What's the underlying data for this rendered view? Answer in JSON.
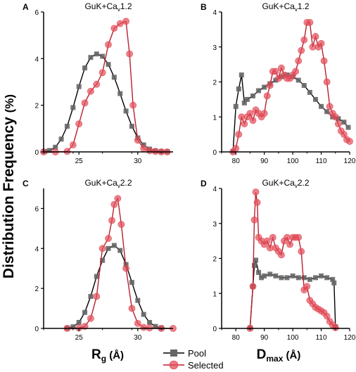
{
  "figure": {
    "ylabel_prefix": "Distribution Frequency ",
    "ylabel_unit": "(%)",
    "legend": [
      {
        "label": "Pool",
        "marker": "square",
        "color": "#333333"
      },
      {
        "label": "Selected",
        "marker": "circle",
        "color": "#e24b58"
      }
    ],
    "x_title_left": {
      "main": "R",
      "sub": "g",
      "unit": " (Å)"
    },
    "x_title_right": {
      "main": "D",
      "sub": "max",
      "unit": " (Å)"
    }
  },
  "colors": {
    "pool": "#333333",
    "selected": "#e24b58",
    "selected_line": "#b8202c",
    "axis": "#000000"
  },
  "chart_data": [
    {
      "panel": "A",
      "title": {
        "pre": "GuK+Ca",
        "sub": "v",
        "post": "1.2"
      },
      "type": "line",
      "xlim": [
        22,
        33
      ],
      "ylim": [
        0,
        6
      ],
      "xticks": [
        25,
        30
      ],
      "yticks": [
        0,
        2,
        4,
        6
      ],
      "series": [
        {
          "name": "Pool",
          "x": [
            22.1,
            22.5,
            23,
            23.5,
            24,
            24.5,
            25,
            25.5,
            26,
            26.5,
            27,
            27.5,
            28,
            28.5,
            29,
            29.5,
            30,
            30.5,
            31,
            31.5,
            32,
            32.5
          ],
          "y": [
            0.02,
            0.06,
            0.2,
            0.55,
            1.1,
            1.9,
            2.8,
            3.6,
            4.05,
            4.2,
            4.1,
            3.75,
            3.2,
            2.5,
            1.75,
            1.1,
            0.6,
            0.3,
            0.12,
            0.05,
            0.02,
            0.01
          ]
        },
        {
          "name": "Selected",
          "x": [
            22,
            23,
            24,
            24.5,
            25,
            25.5,
            26,
            26.5,
            27,
            27.5,
            28,
            28.5,
            29,
            29.3,
            29.6,
            30,
            30.5,
            31,
            31.5,
            32,
            32.5
          ],
          "y": [
            0,
            0,
            0.02,
            0.3,
            1.2,
            2.1,
            2.6,
            2.9,
            3.4,
            4.6,
            5.3,
            5.5,
            5.6,
            4.2,
            2.0,
            0.5,
            0.15,
            0.05,
            0.02,
            0,
            0
          ]
        }
      ]
    },
    {
      "panel": "B",
      "title": {
        "pre": "GuK+Ca",
        "sub": "v",
        "post": "1.2"
      },
      "type": "line",
      "xlim": [
        75,
        120
      ],
      "ylim": [
        0,
        4
      ],
      "xticks": [
        80,
        90,
        100,
        110,
        120
      ],
      "yticks": [
        0,
        1,
        2,
        3,
        4
      ],
      "series": [
        {
          "name": "Pool",
          "x": [
            79,
            80,
            81,
            82,
            83,
            84,
            86,
            88,
            90,
            92,
            94,
            96,
            98,
            100,
            102,
            104,
            106,
            108,
            110,
            112,
            114,
            116,
            118,
            119.5
          ],
          "y": [
            0.02,
            1.3,
            1.8,
            2.2,
            1.4,
            1.5,
            1.6,
            1.75,
            1.85,
            1.95,
            2.05,
            2.15,
            2.2,
            2.15,
            2.05,
            1.9,
            1.7,
            1.5,
            1.3,
            1.15,
            1.0,
            0.95,
            0.85,
            0.7
          ]
        },
        {
          "name": "Selected",
          "x": [
            79,
            80,
            81,
            82,
            83,
            84,
            85,
            86,
            87,
            88,
            89,
            90,
            91,
            92,
            93,
            94,
            95,
            96,
            97,
            98,
            99,
            100,
            101,
            102,
            103,
            104,
            105,
            106,
            107,
            108,
            109,
            110,
            111,
            112,
            113,
            114,
            115,
            116,
            117,
            118,
            119,
            120
          ],
          "y": [
            0,
            0.1,
            0.5,
            1.0,
            0.8,
            1.0,
            1.1,
            0.9,
            1.2,
            1.1,
            1.0,
            1.1,
            1.6,
            1.9,
            2.3,
            2.3,
            2.1,
            2.4,
            2.2,
            2.1,
            2.1,
            2.2,
            2.3,
            2.6,
            2.9,
            3.2,
            3.7,
            3.7,
            3.0,
            3.3,
            3.0,
            3.1,
            2.6,
            2.0,
            1.3,
            1.1,
            1.0,
            0.8,
            0.6,
            0.5,
            0.35,
            0.3
          ]
        }
      ]
    },
    {
      "panel": "C",
      "title": {
        "pre": "GuK+Ca",
        "sub": "v",
        "post": "2.2"
      },
      "type": "line",
      "xlim": [
        22,
        33
      ],
      "ylim": [
        0,
        7
      ],
      "xticks": [
        25,
        30
      ],
      "yticks": [
        0,
        2,
        4,
        6
      ],
      "series": [
        {
          "name": "Pool",
          "x": [
            24,
            24.5,
            25,
            25.5,
            26,
            26.5,
            27,
            27.5,
            28,
            28.5,
            29,
            29.5,
            30,
            30.5,
            31,
            31.5,
            32
          ],
          "y": [
            0.02,
            0.08,
            0.3,
            0.8,
            1.6,
            2.6,
            3.4,
            4.0,
            4.15,
            3.9,
            3.2,
            2.3,
            1.4,
            0.7,
            0.3,
            0.1,
            0.03
          ]
        },
        {
          "name": "Selected",
          "x": [
            24,
            25,
            25.5,
            26,
            26.5,
            27,
            27.5,
            27.8,
            28,
            28.3,
            28.6,
            29,
            29.5,
            30,
            30.5,
            31,
            32,
            33
          ],
          "y": [
            0,
            0.02,
            0.1,
            0.5,
            1.6,
            4.0,
            4.5,
            5.4,
            6.2,
            6.5,
            5.2,
            3.0,
            1.0,
            0.25,
            0.05,
            0.02,
            0,
            0
          ]
        }
      ]
    },
    {
      "panel": "D",
      "title": {
        "pre": "GuK+Ca",
        "sub": "v",
        "post": "2.2"
      },
      "type": "line",
      "xlim": [
        75,
        120
      ],
      "ylim": [
        0,
        4
      ],
      "xticks": [
        80,
        90,
        100,
        110,
        120
      ],
      "yticks": [
        0,
        1,
        2,
        3,
        4
      ],
      "series": [
        {
          "name": "Pool",
          "x": [
            85,
            86,
            86.5,
            87,
            88,
            89,
            90,
            92,
            94,
            96,
            98,
            100,
            102,
            104,
            106,
            108,
            110,
            112,
            114,
            114.5,
            115
          ],
          "y": [
            0.02,
            1.2,
            1.8,
            1.95,
            1.6,
            1.45,
            1.5,
            1.55,
            1.5,
            1.45,
            1.45,
            1.5,
            1.45,
            1.45,
            1.4,
            1.45,
            1.5,
            1.45,
            1.4,
            1.3,
            0.05
          ]
        },
        {
          "name": "Selected",
          "x": [
            85,
            86,
            86.5,
            87,
            87.5,
            88,
            89,
            90,
            91,
            92,
            93,
            94,
            95,
            96,
            97,
            98,
            99,
            100,
            101,
            102,
            103,
            104,
            105,
            106,
            107,
            108,
            109,
            110,
            111,
            112,
            113,
            114,
            115
          ],
          "y": [
            0,
            1.2,
            3.1,
            3.9,
            3.6,
            2.6,
            2.5,
            2.4,
            2.5,
            2.3,
            2.6,
            2.3,
            2.2,
            2.1,
            2.5,
            2.6,
            2.4,
            2.6,
            2.6,
            2.6,
            2.2,
            1.1,
            1.2,
            0.8,
            0.7,
            0.6,
            0.55,
            0.5,
            0.45,
            0.35,
            0.2,
            0.1,
            0.02
          ]
        }
      ]
    }
  ]
}
